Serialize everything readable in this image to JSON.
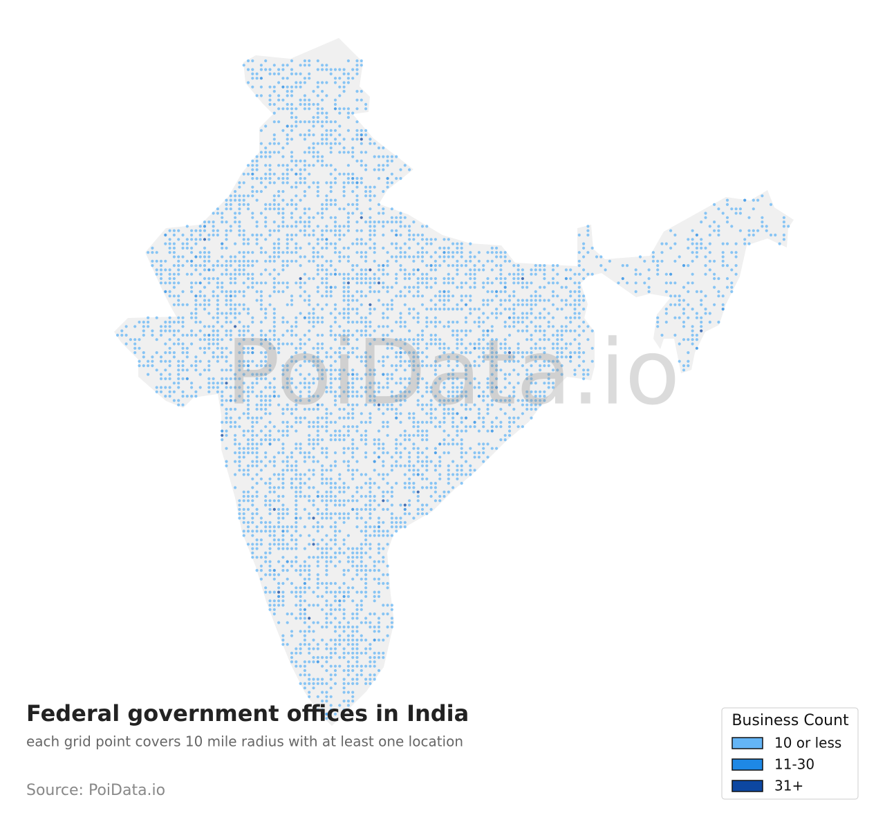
{
  "title": "Federal government offices in India",
  "subtitle": "each grid point covers 10 mile radius with at least one location",
  "source": "Source: PoiData.io",
  "watermark": "PoiData.io",
  "legend": {
    "title": "Business Count",
    "items": [
      {
        "label": "10 or less",
        "color": "#64b5f6"
      },
      {
        "label": "11-30",
        "color": "#1e88e5"
      },
      {
        "label": "31+",
        "color": "#0d47a1"
      }
    ]
  }
}
